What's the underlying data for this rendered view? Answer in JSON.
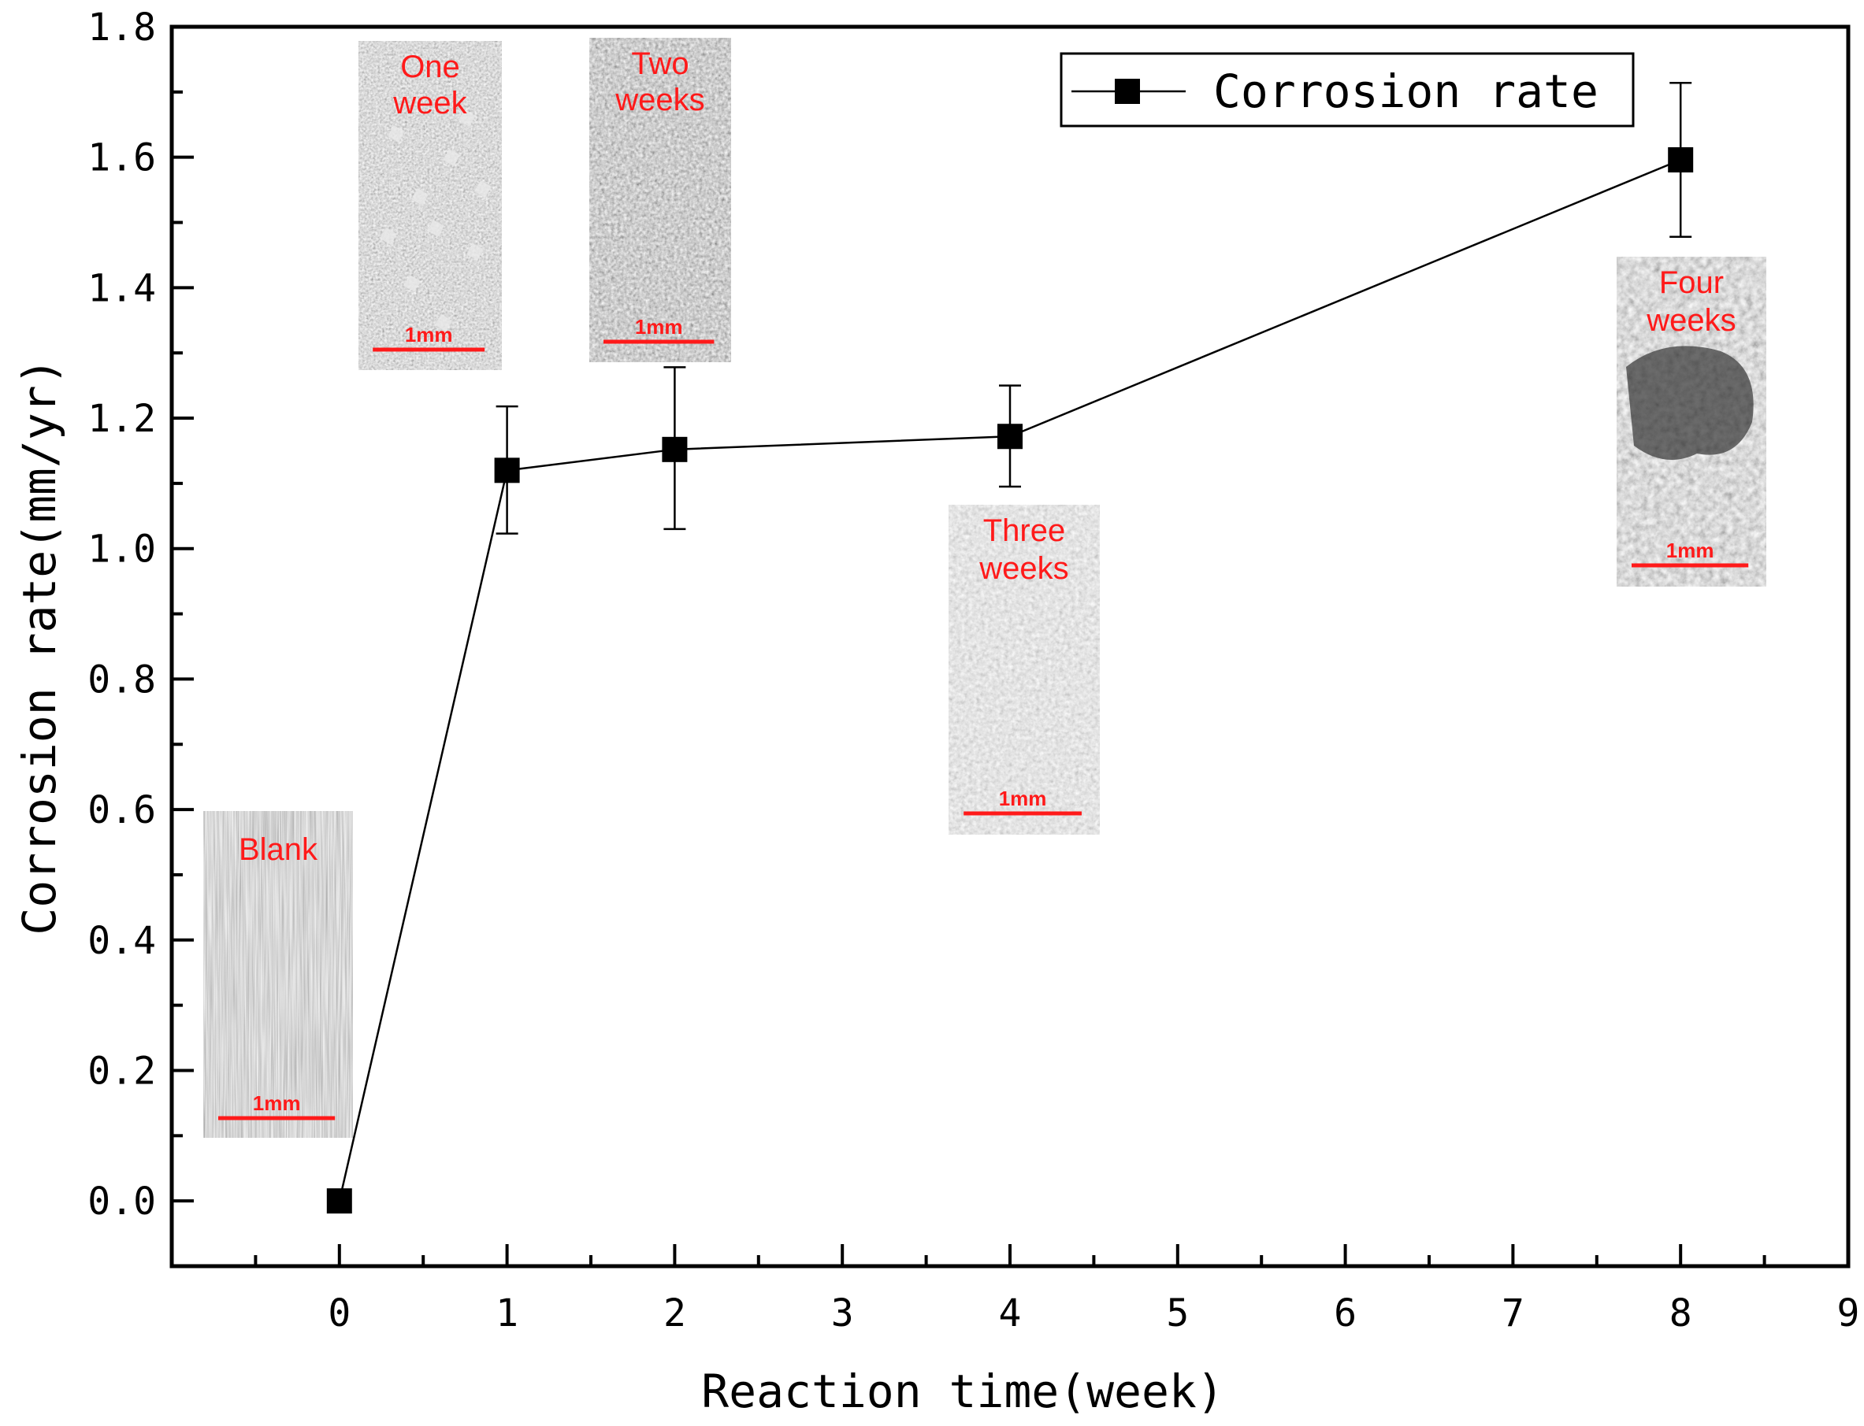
{
  "chart_data": {
    "type": "line",
    "title": "",
    "xlabel": "Reaction time(week)",
    "ylabel": "Corrosion rate(mm/yr)",
    "xlim": [
      -1,
      9
    ],
    "ylim": [
      -0.1,
      1.8
    ],
    "x_ticks": [
      "0",
      "1",
      "2",
      "3",
      "4",
      "5",
      "6",
      "7",
      "8",
      "9"
    ],
    "y_ticks": [
      "0.0",
      "0.2",
      "0.4",
      "0.6",
      "0.8",
      "1.0",
      "1.2",
      "1.4",
      "1.6",
      "1.8"
    ],
    "legend_position": "top-right",
    "grid": false,
    "series": [
      {
        "name": "Corrosion rate",
        "color": "#000000",
        "marker": "square",
        "points": [
          {
            "x": 0,
            "y": 0.0,
            "err_low": 0.0,
            "err_high": 0.0
          },
          {
            "x": 1,
            "y": 1.12,
            "err_low": 1.023,
            "err_high": 1.218
          },
          {
            "x": 2,
            "y": 1.152,
            "err_low": 1.03,
            "err_high": 1.278
          },
          {
            "x": 4,
            "y": 1.172,
            "err_low": 1.095,
            "err_high": 1.25
          },
          {
            "x": 8,
            "y": 1.596,
            "err_low": 1.478,
            "err_high": 1.714
          }
        ]
      }
    ],
    "insets": [
      {
        "id": "blank",
        "label_lines": [
          "Blank"
        ],
        "scale_label": "1mm",
        "texture": "brushed-metal"
      },
      {
        "id": "one-week",
        "label_lines": [
          "One",
          "week"
        ],
        "scale_label": "1mm",
        "texture": "crystals"
      },
      {
        "id": "two-weeks",
        "label_lines": [
          "Two",
          "weeks"
        ],
        "scale_label": "1mm",
        "texture": "dark-rough"
      },
      {
        "id": "three-weeks",
        "label_lines": [
          "Three",
          "weeks"
        ],
        "scale_label": "1mm",
        "texture": "light-rough"
      },
      {
        "id": "four-weeks",
        "label_lines": [
          "Four",
          "weeks"
        ],
        "scale_label": "1mm",
        "texture": "pitted"
      }
    ]
  }
}
